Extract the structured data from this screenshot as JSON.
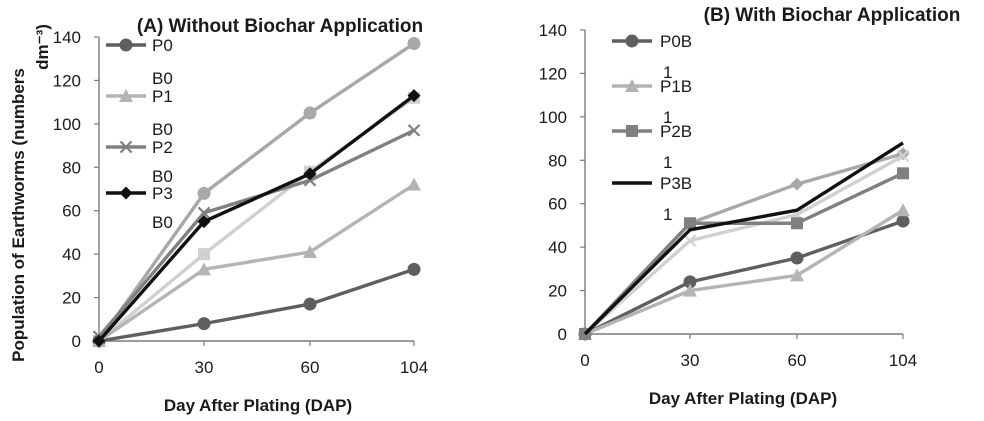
{
  "chart_data": [
    {
      "type": "line",
      "title": "(A) Without Biochar Application",
      "xlabel": "Day After Plating (DAP)",
      "ylabel": "Population of Earthworms (numbers dm⁻³)",
      "ylabel_line1": "Population of Earthworms (numbers",
      "ylabel_line2": "dm⁻³)",
      "categories": [
        "0",
        "30",
        "60",
        "104"
      ],
      "ylim": [
        0,
        140
      ],
      "yticks": [
        "0",
        "20",
        "40",
        "60",
        "80",
        "100",
        "120",
        "140"
      ],
      "grid": false,
      "legend_position": "top-left",
      "series": [
        {
          "name": "P0 B0",
          "legend_line1": "P0",
          "legend_line2": "B0",
          "values": [
            0,
            8,
            17,
            33
          ],
          "color": "#5f5f5f",
          "marker": "circle"
        },
        {
          "name": "P1 B0",
          "legend_line1": "P1",
          "legend_line2": "B0",
          "values": [
            0,
            33,
            41,
            72
          ],
          "color": "#b4b4b4",
          "marker": "triangle"
        },
        {
          "name": "P2 B0",
          "legend_line1": "P2",
          "legend_line2": "B0",
          "values": [
            2,
            59,
            74,
            97
          ],
          "color": "#808080",
          "marker": "x"
        },
        {
          "name": "P3 B0",
          "legend_line1": "P3",
          "legend_line2": "B0",
          "values": [
            0,
            55,
            77,
            113
          ],
          "color": "#111111",
          "marker": "diamond"
        }
      ],
      "unlabeled_series": [
        {
          "values": [
            0,
            68,
            105,
            137
          ],
          "color": "#a8a8a8",
          "marker": "circle"
        },
        {
          "values": [
            0,
            40,
            78,
            112
          ],
          "color": "#d0d0d0",
          "marker": "square"
        }
      ]
    },
    {
      "type": "line",
      "title": "(B) With Biochar Application",
      "xlabel": "Day After Plating (DAP)",
      "ylabel": "",
      "categories": [
        "0",
        "30",
        "60",
        "104"
      ],
      "ylim": [
        0,
        140
      ],
      "yticks": [
        "0",
        "20",
        "40",
        "60",
        "80",
        "100",
        "120",
        "140"
      ],
      "grid": false,
      "legend_position": "top-left",
      "series": [
        {
          "name": "P0B 1",
          "legend_line1": "P0B",
          "legend_line2": "1",
          "values": [
            0,
            24,
            35,
            52
          ],
          "color": "#5f5f5f",
          "marker": "circle"
        },
        {
          "name": "P1B 1",
          "legend_line1": "P1B",
          "legend_line2": "1",
          "values": [
            0,
            20,
            27,
            57
          ],
          "color": "#b4b4b4",
          "marker": "triangle"
        },
        {
          "name": "P2B 1",
          "legend_line1": "P2B",
          "legend_line2": "1",
          "values": [
            0,
            51,
            51,
            74
          ],
          "color": "#808080",
          "marker": "square"
        },
        {
          "name": "P3B 1",
          "legend_line1": "P3B",
          "legend_line2": "1",
          "values": [
            0,
            48,
            57,
            88
          ],
          "color": "#111111",
          "marker": "none"
        }
      ],
      "unlabeled_series": [
        {
          "values": [
            0,
            51,
            69,
            83
          ],
          "color": "#a8a8a8",
          "marker": "diamond"
        },
        {
          "values": [
            0,
            43,
            55,
            82
          ],
          "color": "#d0d0d0",
          "marker": "x"
        }
      ]
    }
  ]
}
